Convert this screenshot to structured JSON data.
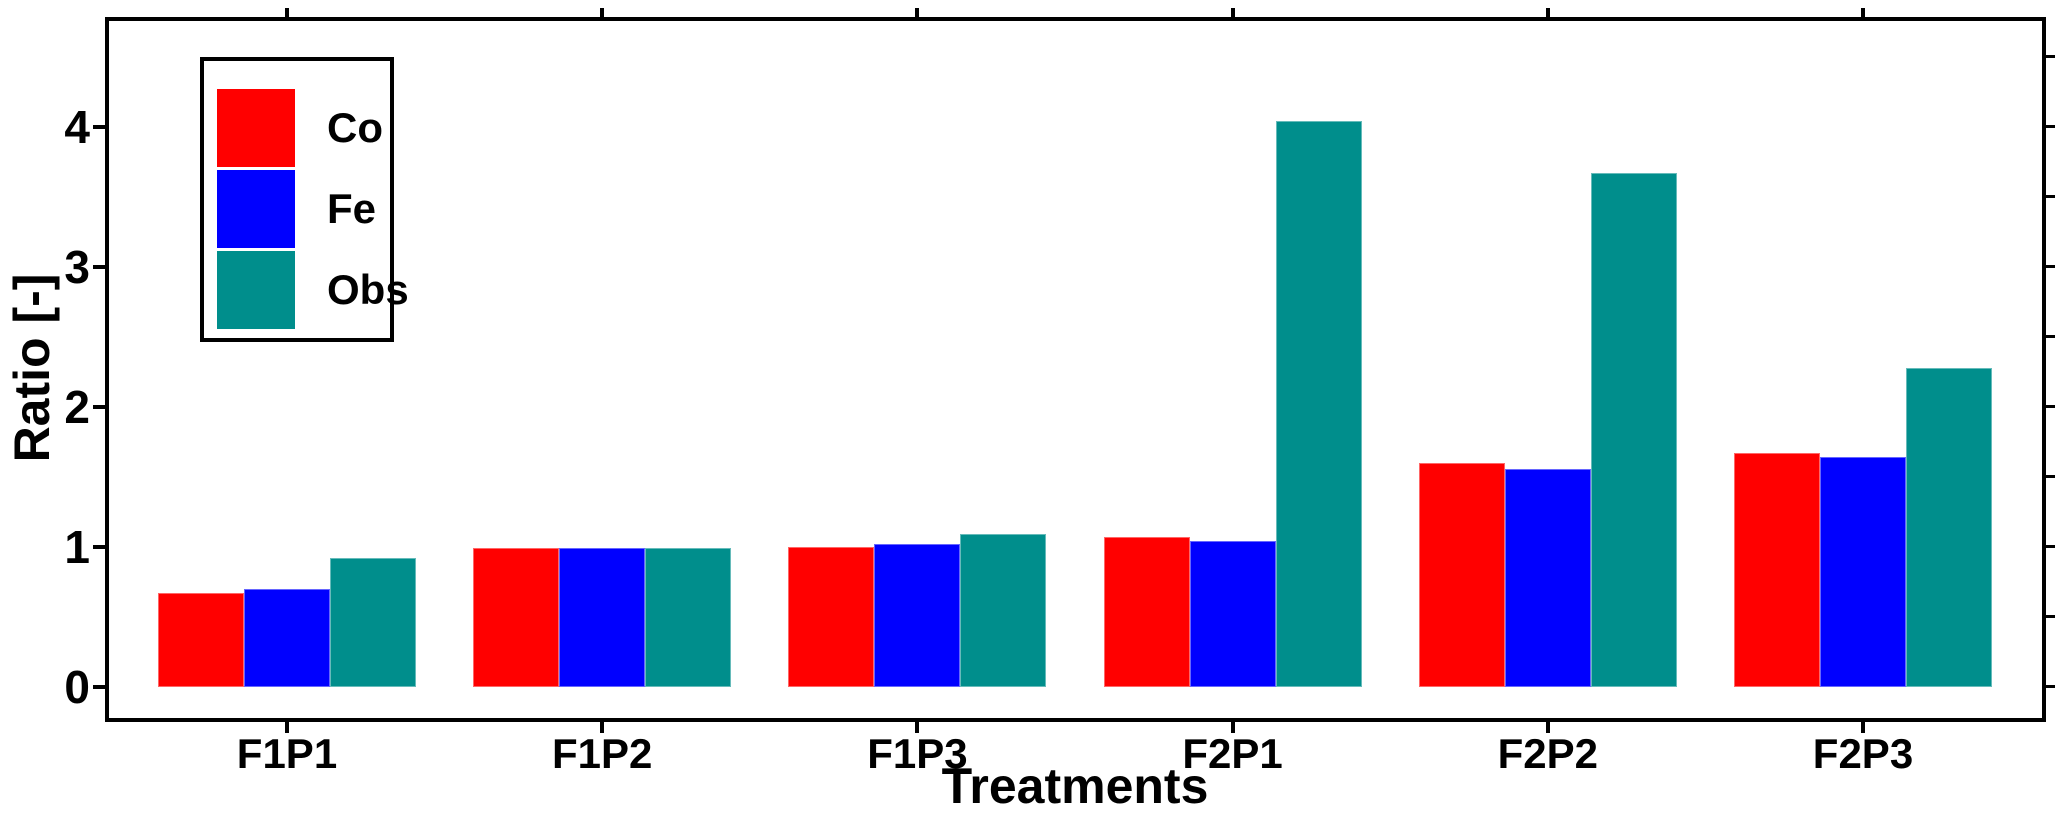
{
  "chart_data": {
    "type": "bar",
    "title": "",
    "xlabel": "Treatments",
    "ylabel": "Ratio [-]",
    "categories": [
      "F1P1",
      "F1P2",
      "F1P3",
      "F2P1",
      "F2P2",
      "F2P3"
    ],
    "series": [
      {
        "name": "Co",
        "color": "#ff0000",
        "values": [
          0.67,
          0.99,
          1.0,
          1.07,
          1.6,
          1.67
        ]
      },
      {
        "name": "Fe",
        "color": "#0000ff",
        "values": [
          0.7,
          0.99,
          1.02,
          1.04,
          1.56,
          1.64
        ]
      },
      {
        "name": "Obs",
        "color": "#008e8c",
        "values": [
          0.92,
          0.99,
          1.09,
          4.04,
          3.67,
          2.28
        ]
      }
    ],
    "ylim": [
      -0.24,
      4.79
    ],
    "yticks": [
      0,
      1,
      2,
      3,
      4
    ],
    "right_axis_minor_ticks": [
      0,
      0.5,
      1,
      1.5,
      2,
      2.5,
      3,
      3.5,
      4,
      4.5
    ],
    "grid": false,
    "legend_position": "top-left",
    "axis_color": "#000000",
    "background_color": "#ffffff"
  }
}
